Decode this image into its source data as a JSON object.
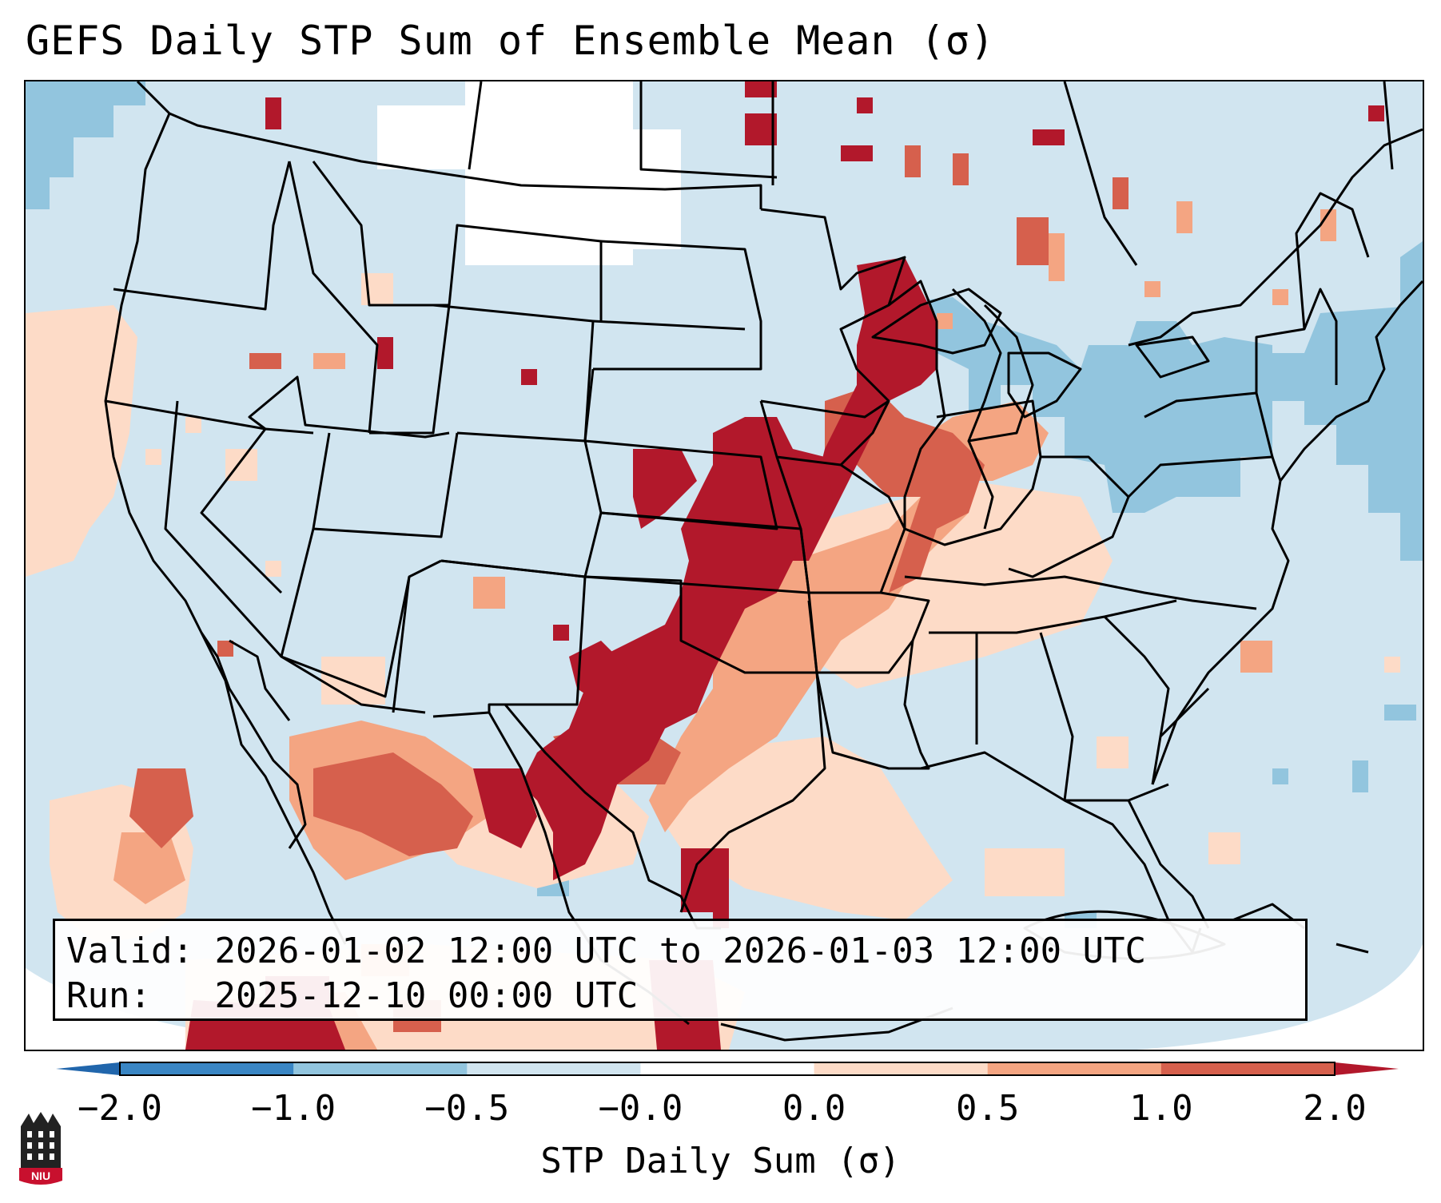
{
  "title": "GEFS Daily STP Sum of Ensemble Mean (σ)",
  "info": {
    "valid_label": "Valid:",
    "valid_value": "2026-01-02 12:00 UTC to 2026-01-03 12:00 UTC",
    "run_label": "Run:",
    "run_value": "2025-12-10 00:00 UTC"
  },
  "colorbar": {
    "label": "STP Daily Sum (σ)",
    "bins": [
      {
        "from": -2.0,
        "to": -1.0,
        "color": "#3a86c4"
      },
      {
        "from": -1.0,
        "to": -0.5,
        "color": "#92c5de"
      },
      {
        "from": -0.5,
        "to": -0.0,
        "color": "#d1e5f0"
      },
      {
        "from": -0.0,
        "to": 0.0,
        "color": "#ffffff"
      },
      {
        "from": 0.0,
        "to": 0.5,
        "color": "#fddbc7"
      },
      {
        "from": 0.5,
        "to": 1.0,
        "color": "#f4a582"
      },
      {
        "from": 1.0,
        "to": 2.0,
        "color": "#d6604d"
      }
    ],
    "under_color": "#2166ac",
    "over_color": "#b2182b",
    "ticks": [
      "−2.0",
      "−1.0",
      "−0.5",
      "−0.0",
      "0.0",
      "0.5",
      "1.0",
      "2.0"
    ]
  },
  "logo": {
    "text": "NIU"
  }
}
